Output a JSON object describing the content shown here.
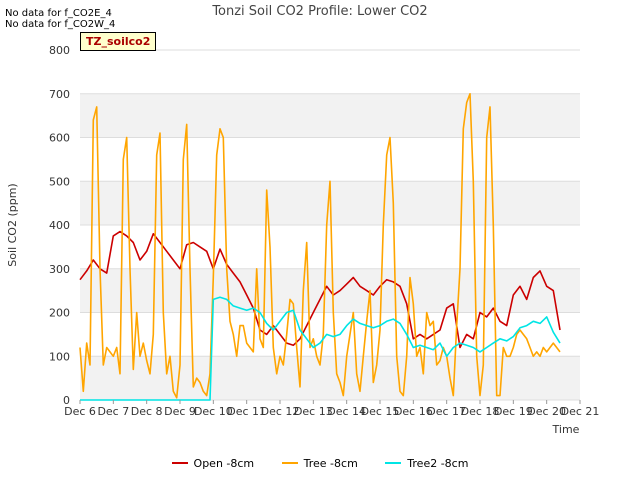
{
  "no_data_notes": [
    "No data for f_CO2E_4",
    "No data for f_CO2W_4"
  ],
  "badge": "TZ_soilco2",
  "chart_data": {
    "type": "line",
    "title": "Tonzi Soil CO2 Profile: Lower CO2",
    "xlabel": "Time",
    "ylabel": "Soil CO2 (ppm)",
    "xlim": [
      6,
      21
    ],
    "ylim": [
      0,
      800
    ],
    "xticks": [
      6,
      7,
      8,
      9,
      10,
      11,
      12,
      13,
      14,
      15,
      16,
      17,
      18,
      19,
      20,
      21
    ],
    "xtick_labels": [
      "Dec 6",
      "Dec 7",
      "Dec 8",
      "Dec 9",
      "Dec 10",
      "Dec 11",
      "Dec 12",
      "Dec 13",
      "Dec 14",
      "Dec 15",
      "Dec 16",
      "Dec 17",
      "Dec 18",
      "Dec 19",
      "Dec 20",
      "Dec 21"
    ],
    "yticks": [
      0,
      100,
      200,
      300,
      400,
      500,
      600,
      700,
      800
    ],
    "legend_position": "bottom",
    "series": [
      {
        "name": "Open -8cm",
        "color": "#cc0000",
        "x": [
          6.0,
          6.2,
          6.4,
          6.6,
          6.8,
          7.0,
          7.2,
          7.4,
          7.6,
          7.8,
          8.0,
          8.2,
          8.4,
          8.6,
          8.8,
          9.0,
          9.2,
          9.4,
          9.6,
          9.8,
          10.0,
          10.2,
          10.4,
          10.6,
          10.8,
          11.0,
          11.2,
          11.4,
          11.6,
          11.8,
          12.0,
          12.2,
          12.4,
          12.6,
          12.8,
          13.0,
          13.2,
          13.4,
          13.6,
          13.8,
          14.0,
          14.2,
          14.4,
          14.6,
          14.8,
          15.0,
          15.2,
          15.4,
          15.6,
          15.8,
          16.0,
          16.2,
          16.4,
          16.6,
          16.8,
          17.0,
          17.2,
          17.4,
          17.6,
          17.8,
          18.0,
          18.2,
          18.4,
          18.6,
          18.8,
          19.0,
          19.2,
          19.4,
          19.6,
          19.8,
          20.0,
          20.2,
          20.4
        ],
        "y": [
          275,
          295,
          320,
          300,
          290,
          375,
          385,
          375,
          360,
          320,
          340,
          380,
          360,
          340,
          320,
          300,
          355,
          360,
          350,
          340,
          300,
          345,
          310,
          290,
          270,
          240,
          210,
          160,
          150,
          170,
          150,
          130,
          125,
          140,
          170,
          200,
          230,
          260,
          240,
          250,
          265,
          280,
          260,
          250,
          240,
          260,
          275,
          270,
          260,
          220,
          140,
          150,
          140,
          150,
          160,
          210,
          220,
          120,
          150,
          140,
          200,
          190,
          210,
          180,
          170,
          240,
          260,
          230,
          280,
          295,
          260,
          250,
          160
        ]
      },
      {
        "name": "Tree -8cm",
        "color": "#ffa500",
        "x": [
          6.0,
          6.1,
          6.2,
          6.3,
          6.4,
          6.5,
          6.6,
          6.7,
          6.8,
          6.9,
          7.0,
          7.1,
          7.2,
          7.3,
          7.4,
          7.5,
          7.6,
          7.7,
          7.8,
          7.9,
          8.0,
          8.1,
          8.2,
          8.3,
          8.4,
          8.5,
          8.6,
          8.7,
          8.8,
          8.9,
          9.0,
          9.1,
          9.2,
          9.3,
          9.4,
          9.5,
          9.6,
          9.7,
          9.8,
          9.9,
          10.0,
          10.1,
          10.2,
          10.3,
          10.4,
          10.5,
          10.6,
          10.7,
          10.8,
          10.9,
          11.0,
          11.1,
          11.2,
          11.3,
          11.4,
          11.5,
          11.6,
          11.7,
          11.8,
          11.9,
          12.0,
          12.1,
          12.2,
          12.3,
          12.4,
          12.5,
          12.6,
          12.7,
          12.8,
          12.9,
          13.0,
          13.1,
          13.2,
          13.3,
          13.4,
          13.5,
          13.6,
          13.7,
          13.8,
          13.9,
          14.0,
          14.1,
          14.2,
          14.3,
          14.4,
          14.5,
          14.6,
          14.7,
          14.8,
          14.9,
          15.0,
          15.1,
          15.2,
          15.3,
          15.4,
          15.5,
          15.6,
          15.7,
          15.8,
          15.9,
          16.0,
          16.1,
          16.2,
          16.3,
          16.4,
          16.5,
          16.6,
          16.7,
          16.8,
          16.9,
          17.0,
          17.1,
          17.2,
          17.3,
          17.4,
          17.5,
          17.6,
          17.7,
          17.8,
          17.9,
          18.0,
          18.1,
          18.2,
          18.3,
          18.4,
          18.5,
          18.6,
          18.7,
          18.8,
          18.9,
          19.0,
          19.1,
          19.2,
          19.3,
          19.4,
          19.5,
          19.6,
          19.7,
          19.8,
          19.9,
          20.0,
          20.1,
          20.2,
          20.4
        ],
        "y": [
          120,
          20,
          130,
          80,
          640,
          670,
          300,
          80,
          120,
          110,
          100,
          120,
          60,
          550,
          600,
          300,
          70,
          200,
          100,
          130,
          90,
          60,
          150,
          560,
          610,
          200,
          60,
          100,
          20,
          5,
          80,
          550,
          630,
          300,
          30,
          50,
          40,
          20,
          10,
          60,
          280,
          560,
          620,
          600,
          300,
          180,
          150,
          100,
          170,
          170,
          130,
          120,
          110,
          300,
          140,
          120,
          480,
          350,
          120,
          60,
          100,
          80,
          150,
          230,
          220,
          120,
          30,
          250,
          360,
          120,
          140,
          100,
          80,
          150,
          400,
          500,
          200,
          60,
          40,
          10,
          100,
          150,
          200,
          60,
          20,
          100,
          180,
          250,
          40,
          80,
          160,
          400,
          560,
          600,
          450,
          100,
          20,
          10,
          100,
          280,
          220,
          100,
          120,
          60,
          200,
          170,
          180,
          80,
          90,
          120,
          100,
          50,
          10,
          170,
          300,
          620,
          680,
          700,
          500,
          100,
          10,
          80,
          600,
          670,
          400,
          10,
          10,
          120,
          100,
          100,
          120,
          150,
          160,
          150,
          140,
          120,
          100,
          110,
          100,
          120,
          110,
          120,
          130,
          110
        ]
      },
      {
        "name": "Tree2 -8cm",
        "color": "#00e5e5",
        "x": [
          6.0,
          7.0,
          8.0,
          9.0,
          9.9,
          10.0,
          10.2,
          10.4,
          10.6,
          10.8,
          11.0,
          11.2,
          11.4,
          11.6,
          11.8,
          12.0,
          12.2,
          12.4,
          12.6,
          12.8,
          13.0,
          13.2,
          13.4,
          13.6,
          13.8,
          14.0,
          14.2,
          14.4,
          14.6,
          14.8,
          15.0,
          15.2,
          15.4,
          15.6,
          15.8,
          16.0,
          16.2,
          16.4,
          16.6,
          16.8,
          17.0,
          17.2,
          17.4,
          17.6,
          17.8,
          18.0,
          18.2,
          18.4,
          18.6,
          18.8,
          19.0,
          19.2,
          19.4,
          19.6,
          19.8,
          20.0,
          20.2,
          20.4
        ],
        "y": [
          0,
          0,
          0,
          0,
          0,
          230,
          235,
          230,
          215,
          210,
          205,
          210,
          200,
          175,
          160,
          180,
          200,
          205,
          160,
          140,
          120,
          130,
          150,
          145,
          150,
          170,
          185,
          175,
          170,
          165,
          170,
          180,
          185,
          175,
          150,
          120,
          125,
          120,
          115,
          130,
          100,
          120,
          130,
          125,
          120,
          110,
          120,
          130,
          140,
          135,
          145,
          165,
          170,
          180,
          175,
          190,
          155,
          130
        ]
      }
    ]
  }
}
